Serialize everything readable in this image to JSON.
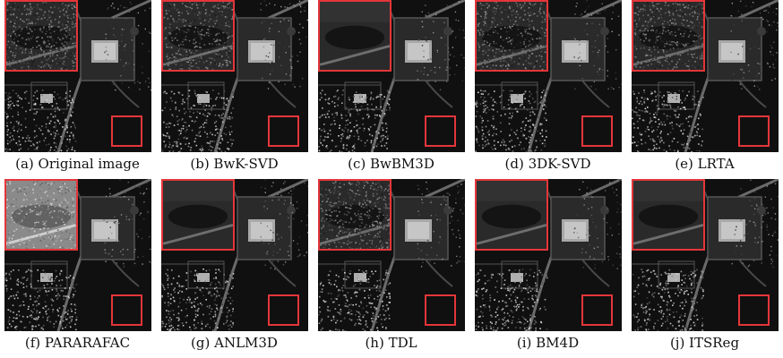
{
  "figure": {
    "highlight_color": "#e4363a",
    "panels": [
      {
        "caption": "(a) Original image",
        "zoom_style": "noisy",
        "noise_level": 0.9
      },
      {
        "caption": "(b) BwK-SVD",
        "zoom_style": "noisy",
        "noise_level": 0.75
      },
      {
        "caption": "(c) BwBM3D",
        "zoom_style": "smooth",
        "noise_level": 0.15
      },
      {
        "caption": "(d) 3DK-SVD",
        "zoom_style": "noisy",
        "noise_level": 0.8
      },
      {
        "caption": "(e) LRTA",
        "zoom_style": "noisy",
        "noise_level": 0.85
      },
      {
        "caption": "(f) PARARAFAC",
        "zoom_style": "bright",
        "noise_level": 0.6
      },
      {
        "caption": "(g) ANLM3D",
        "zoom_style": "smooth",
        "noise_level": 0.25
      },
      {
        "caption": "(h) TDL",
        "zoom_style": "noisy",
        "noise_level": 0.85
      },
      {
        "caption": "(i) BM4D",
        "zoom_style": "smooth",
        "noise_level": 0.2
      },
      {
        "caption": "(j) ITSReg",
        "zoom_style": "smooth",
        "noise_level": 0.3
      }
    ]
  }
}
